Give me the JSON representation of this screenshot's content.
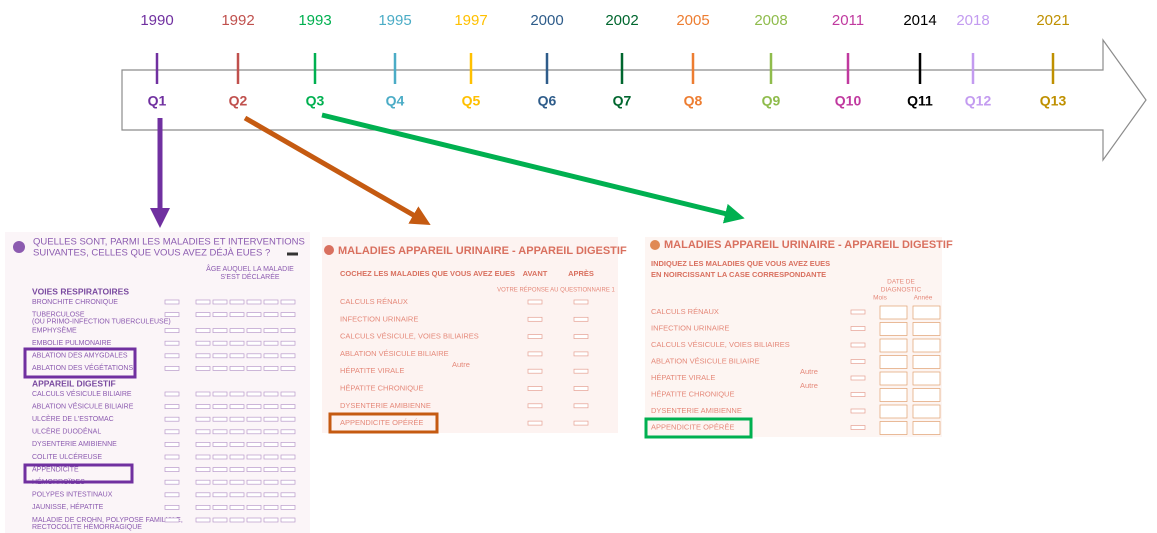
{
  "timeline": [
    {
      "year": "1990",
      "label": "Q1",
      "color": "#7030a0"
    },
    {
      "year": "1992",
      "label": "Q2",
      "color": "#c0504d"
    },
    {
      "year": "1993",
      "label": "Q3",
      "color": "#00b050"
    },
    {
      "year": "1995",
      "label": "Q4",
      "color": "#4bacc6"
    },
    {
      "year": "1997",
      "label": "Q5",
      "color": "#ffc000"
    },
    {
      "year": "2000",
      "label": "Q6",
      "color": "#2e5c8a"
    },
    {
      "year": "2002",
      "label": "Q7",
      "color": "#00662e"
    },
    {
      "year": "2005",
      "label": "Q8",
      "color": "#ed7d31"
    },
    {
      "year": "2008",
      "label": "Q9",
      "color": "#8fbc4c"
    },
    {
      "year": "2011",
      "label": "Q10",
      "color": "#c0399f"
    },
    {
      "year": "2014",
      "label": "Q11",
      "color": "#000000"
    },
    {
      "year": "2018",
      "label": "Q12",
      "color": "#c39bf0"
    },
    {
      "year": "2021",
      "label": "Q13",
      "color": "#bf9000"
    }
  ],
  "questionnaire_1": {
    "title_lines": [
      "QUELLES SONT, PARMI LES MALADIES ET INTERVENTIONS",
      "SUIVANTES, CELLES QUE VOUS AVEZ DÉJÀ EUES ?"
    ],
    "age_header_lines": [
      "ÂGE AUQUEL LA MALADIE",
      "S'EST DÉCLARÉE"
    ],
    "sections": [
      {
        "heading": "VOIES RESPIRATOIRES",
        "items": [
          "BRONCHITE CHRONIQUE",
          [
            "TUBERCULOSE",
            "(OU PRIMO-INFECTION TUBERCULEUSE)"
          ],
          "EMPHYSÈME",
          "EMBOLIE PULMONAIRE",
          "ABLATION DES AMYGDALES",
          "ABLATION DES VÉGÉTATIONS"
        ]
      },
      {
        "heading": "APPAREIL DIGESTIF",
        "items": [
          "CALCULS VÉSICULE BILIAIRE",
          "ABLATION VÉSICULE BILIAIRE",
          "ULCÈRE DE L'ESTOMAC",
          "ULCÈRE DUODÉNAL",
          "DYSENTERIE AMIBIENNE",
          "COLITE ULCÉREUSE",
          "APPENDICITE",
          "HÉMORROÏDES",
          "POLYPES INTESTINAUX",
          "JAUNISSE, HÉPATITE",
          [
            "MALADIE DE CROHN, POLYPOSE FAMILIALE,",
            "RECTOCOLITE HÉMORRAGIQUE"
          ]
        ]
      }
    ]
  },
  "questionnaire_2": {
    "title": "MALADIES APPAREIL URINAIRE - APPAREIL DIGESTIF",
    "instruction": "COCHEZ LES MALADIES QUE VOUS AVEZ EUES",
    "before": "AVANT",
    "after": "APRÈS",
    "reference": "VOTRE RÉPONSE AU QUESTIONNAIRE 1",
    "other": "Autre",
    "items": [
      "CALCULS RÉNAUX",
      "INFECTION URINAIRE",
      "CALCULS VÉSICULE, VOIES BILIAIRES",
      "ABLATION VÉSICULE BILIAIRE",
      "HÉPATITE VIRALE",
      "HÉPATITE CHRONIQUE",
      "DYSENTERIE AMIBIENNE",
      "APPENDICITE OPÉRÉE"
    ]
  },
  "questionnaire_3": {
    "title": "MALADIES APPAREIL URINAIRE - APPAREIL DIGESTIF",
    "instruction_lines": [
      "INDIQUEZ LES MALADIES QUE VOUS AVEZ EUES",
      "EN NOIRCISSANT LA CASE CORRESPONDANTE"
    ],
    "date_header_lines": [
      "DATE DE",
      "DIAGNOSTIC"
    ],
    "month": "Mois",
    "year": "Année",
    "other": "Autre",
    "items": [
      "CALCULS RÉNAUX",
      "INFECTION URINAIRE",
      "CALCULS VÉSICULE, VOIES BILIAIRES",
      "ABLATION VÉSICULE BILIAIRE",
      "HÉPATITE VIRALE",
      "HÉPATITE CHRONIQUE",
      "DYSENTERIE AMIBIENNE",
      "APPENDICITE OPÉRÉE"
    ]
  }
}
